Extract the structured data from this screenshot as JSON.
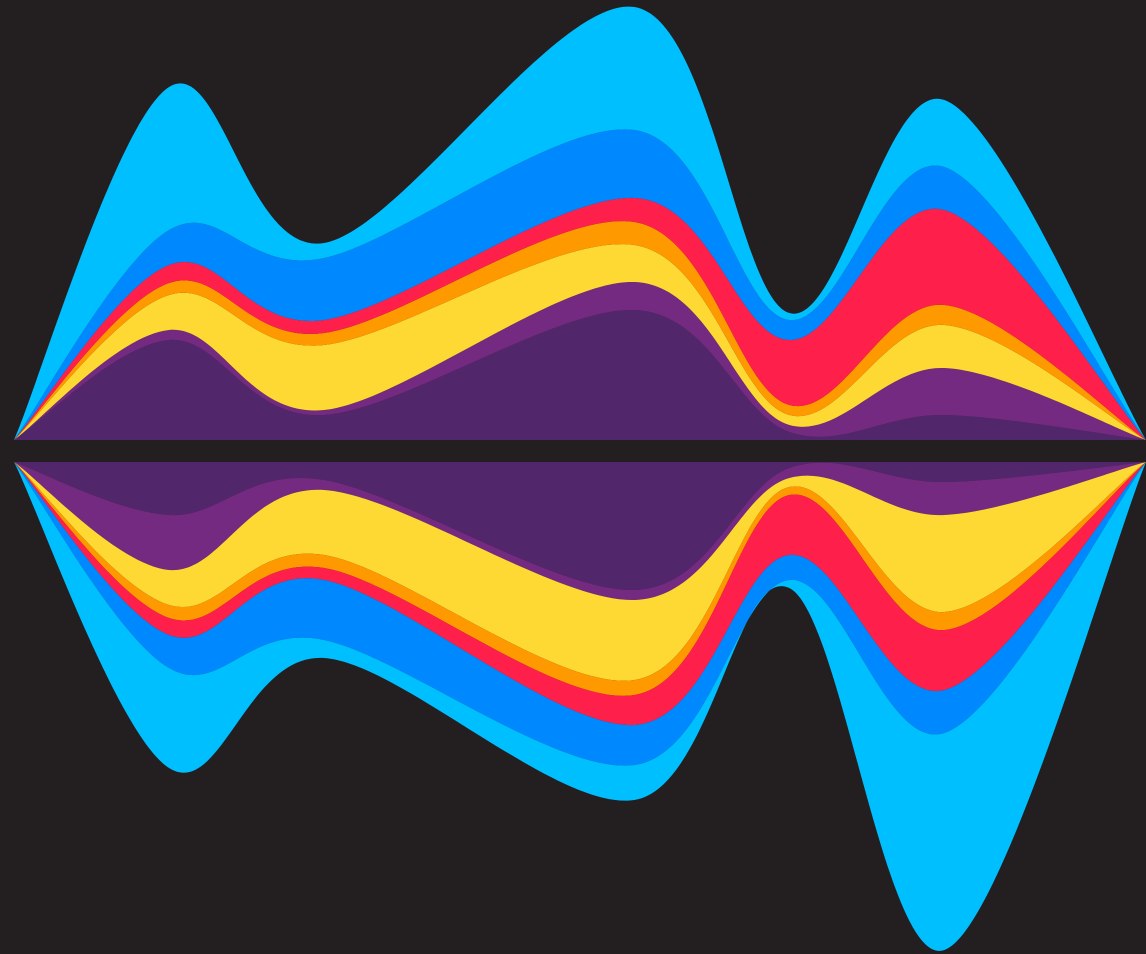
{
  "chart_data": [
    {
      "type": "area",
      "stacked": true,
      "x": [
        0,
        1,
        2,
        4,
        5,
        6,
        7.3
      ],
      "xlim": [
        0,
        7.3
      ],
      "ylim": [
        0,
        440
      ],
      "series": [
        {
          "color": "#52266a",
          "values": [
            0,
            100,
            25,
            130,
            8,
            25,
            0
          ]
        },
        {
          "color": "#732a80",
          "values": [
            0,
            10,
            5,
            28,
            7,
            47,
            0
          ]
        },
        {
          "color": "#ffd933",
          "values": [
            0,
            35,
            65,
            37,
            10,
            43,
            0
          ]
        },
        {
          "color": "#ff9900",
          "values": [
            0,
            12,
            12,
            23,
            10,
            20,
            0
          ]
        },
        {
          "color": "#ff1f4b",
          "values": [
            0,
            18,
            13,
            24,
            65,
            95,
            0
          ]
        },
        {
          "color": "#0088ff",
          "values": [
            0,
            35,
            62,
            68,
            20,
            43,
            0
          ]
        },
        {
          "color": "#00bfff",
          "values": [
            0,
            143,
            15,
            123,
            7,
            67,
            0
          ]
        }
      ]
    },
    {
      "type": "area",
      "stacked": true,
      "x": [
        0,
        1,
        2,
        4,
        5,
        6,
        7.3
      ],
      "xlim": [
        0,
        7.3
      ],
      "ylim": [
        492,
        0
      ],
      "series": [
        {
          "color": "#52266a",
          "values": [
            0,
            53,
            18,
            128,
            6,
            20,
            0
          ]
        },
        {
          "color": "#732a80",
          "values": [
            0,
            55,
            10,
            10,
            10,
            33,
            0
          ]
        },
        {
          "color": "#ffd933",
          "values": [
            0,
            35,
            65,
            80,
            9,
            97,
            0
          ]
        },
        {
          "color": "#ff9900",
          "values": [
            0,
            13,
            13,
            15,
            8,
            18,
            0
          ]
        },
        {
          "color": "#ff1f4b",
          "values": [
            0,
            17,
            12,
            30,
            60,
            60,
            0
          ]
        },
        {
          "color": "#0088ff",
          "values": [
            0,
            33,
            60,
            40,
            25,
            43,
            0
          ]
        },
        {
          "color": "#00bfff",
          "values": [
            0,
            100,
            18,
            35,
            8,
            217,
            0
          ]
        }
      ]
    }
  ]
}
